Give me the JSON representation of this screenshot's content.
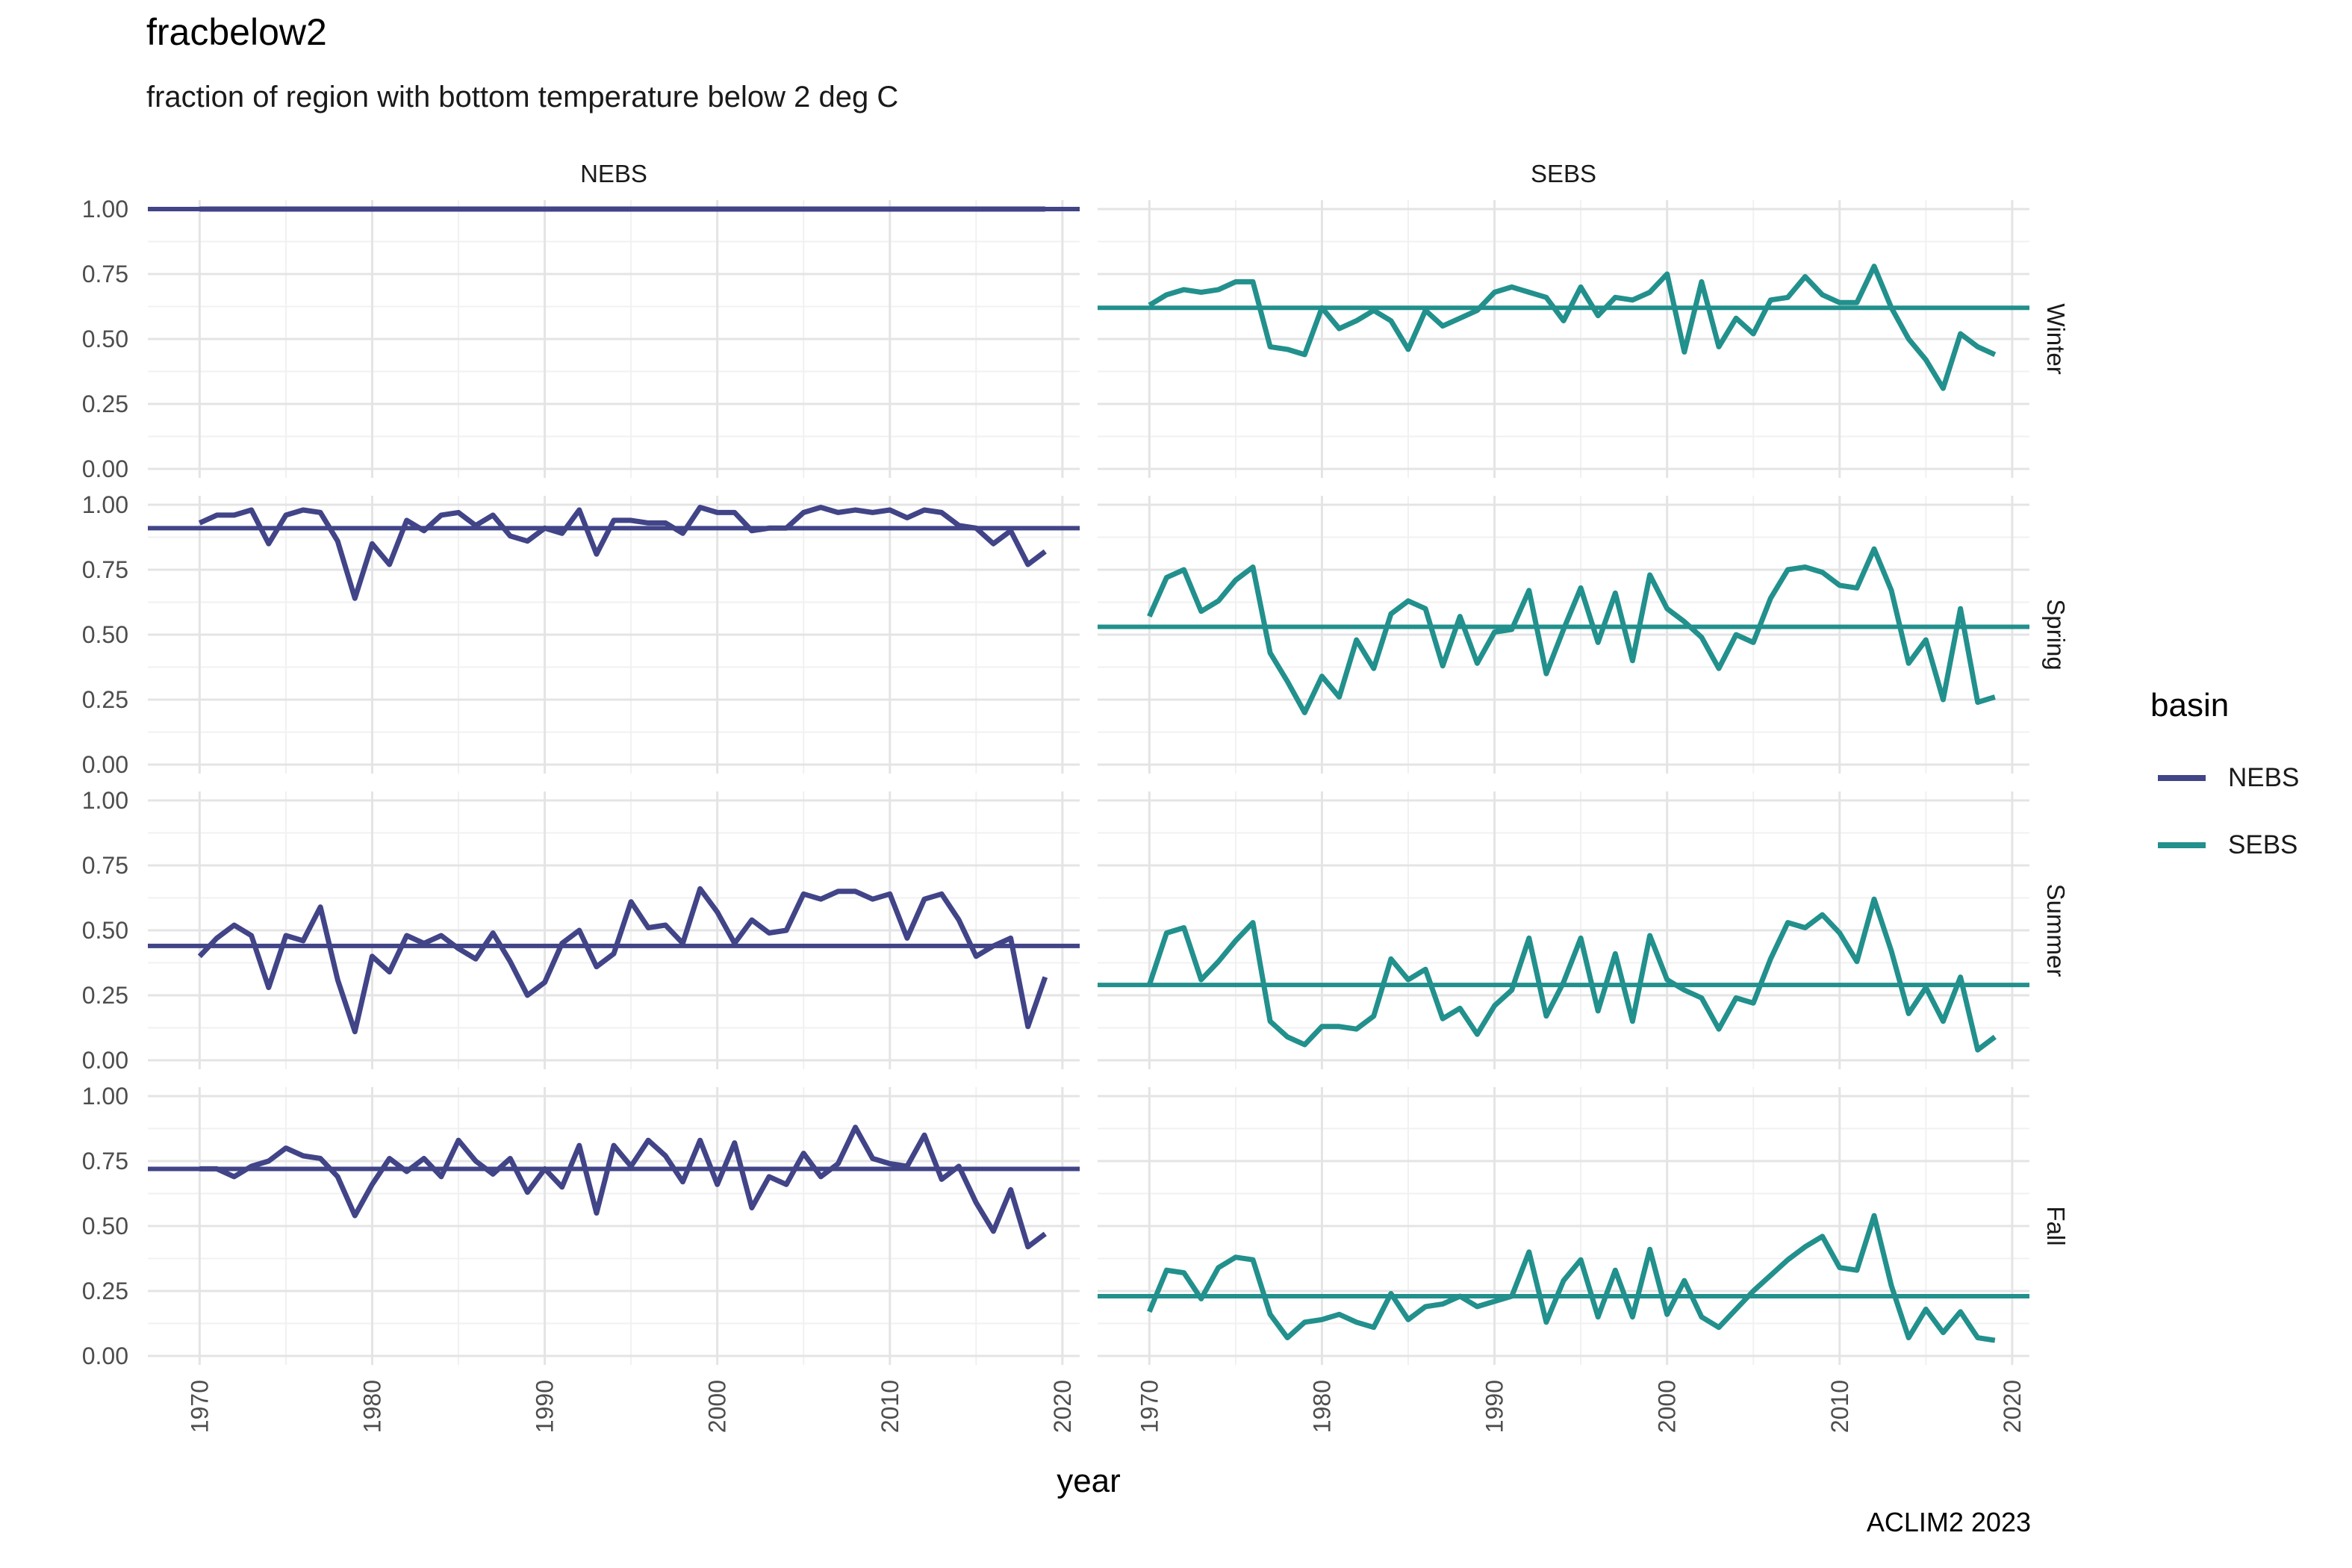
{
  "title": "fracbelow2",
  "subtitle": "fraction of region with bottom temperature below 2 deg C",
  "caption": "ACLIM2 2023",
  "colors": {
    "NEBS": "#414487",
    "SEBS": "#22908C"
  },
  "chart_data": {
    "type": "line",
    "title": "fracbelow2",
    "subtitle": "fraction of region with bottom temperature below 2 deg C",
    "xlabel": "year",
    "ylabel": "",
    "facet_columns": [
      "NEBS",
      "SEBS"
    ],
    "facet_rows": [
      "Winter",
      "Spring",
      "Summer",
      "Fall"
    ],
    "xlim": [
      1967,
      2021
    ],
    "ylim": [
      0,
      1
    ],
    "x_ticks": [
      "1970",
      "1980",
      "1990",
      "2000",
      "2010",
      "2020"
    ],
    "y_ticks": [
      "0.00",
      "0.25",
      "0.50",
      "0.75",
      "1.00"
    ],
    "grid": true,
    "legend": {
      "title": "basin",
      "position": "right",
      "entries": [
        "NEBS",
        "SEBS"
      ]
    },
    "x": [
      1970,
      1971,
      1972,
      1973,
      1974,
      1975,
      1976,
      1977,
      1978,
      1979,
      1980,
      1981,
      1982,
      1983,
      1984,
      1985,
      1986,
      1987,
      1988,
      1989,
      1990,
      1991,
      1992,
      1993,
      1994,
      1995,
      1996,
      1997,
      1998,
      1999,
      2000,
      2001,
      2002,
      2003,
      2004,
      2005,
      2006,
      2007,
      2008,
      2009,
      2010,
      2011,
      2012,
      2013,
      2014,
      2015,
      2016,
      2017,
      2018,
      2019
    ],
    "panels": [
      {
        "basin": "NEBS",
        "season": "Winter",
        "mean": 1.0,
        "values": [
          1,
          1,
          1,
          1,
          1,
          1,
          1,
          1,
          1,
          1,
          1,
          1,
          1,
          1,
          1,
          1,
          1,
          1,
          1,
          1,
          1,
          1,
          1,
          1,
          1,
          1,
          1,
          1,
          1,
          1,
          1,
          1,
          1,
          1,
          1,
          1,
          1,
          1,
          1,
          1,
          1,
          1,
          1,
          1,
          1,
          1,
          1,
          1,
          1,
          1
        ]
      },
      {
        "basin": "SEBS",
        "season": "Winter",
        "mean": 0.62,
        "values": [
          0.63,
          0.67,
          0.69,
          0.68,
          0.69,
          0.72,
          0.72,
          0.47,
          0.46,
          0.44,
          0.62,
          0.54,
          0.57,
          0.61,
          0.57,
          0.46,
          0.61,
          0.55,
          0.58,
          0.61,
          0.68,
          0.7,
          0.68,
          0.66,
          0.57,
          0.7,
          0.59,
          0.66,
          0.65,
          0.68,
          0.75,
          0.45,
          0.72,
          0.47,
          0.58,
          0.52,
          0.65,
          0.66,
          0.74,
          0.67,
          0.64,
          0.64,
          0.78,
          0.62,
          0.5,
          0.42,
          0.31,
          0.52,
          0.47,
          0.44
        ]
      },
      {
        "basin": "NEBS",
        "season": "Spring",
        "mean": 0.91,
        "values": [
          0.93,
          0.96,
          0.96,
          0.98,
          0.85,
          0.96,
          0.98,
          0.97,
          0.86,
          0.64,
          0.85,
          0.77,
          0.94,
          0.9,
          0.96,
          0.97,
          0.92,
          0.96,
          0.88,
          0.86,
          0.91,
          0.89,
          0.98,
          0.81,
          0.94,
          0.94,
          0.93,
          0.93,
          0.89,
          0.99,
          0.97,
          0.97,
          0.9,
          0.91,
          0.91,
          0.97,
          0.99,
          0.97,
          0.98,
          0.97,
          0.98,
          0.95,
          0.98,
          0.97,
          0.92,
          0.91,
          0.85,
          0.9,
          0.77,
          0.82
        ]
      },
      {
        "basin": "SEBS",
        "season": "Spring",
        "mean": 0.53,
        "values": [
          0.57,
          0.72,
          0.75,
          0.59,
          0.63,
          0.71,
          0.76,
          0.43,
          0.32,
          0.2,
          0.34,
          0.26,
          0.48,
          0.37,
          0.58,
          0.63,
          0.6,
          0.38,
          0.57,
          0.39,
          0.51,
          0.52,
          0.67,
          0.35,
          0.52,
          0.68,
          0.47,
          0.66,
          0.4,
          0.73,
          0.6,
          0.55,
          0.49,
          0.37,
          0.5,
          0.47,
          0.64,
          0.75,
          0.76,
          0.74,
          0.69,
          0.68,
          0.83,
          0.67,
          0.39,
          0.48,
          0.25,
          0.6,
          0.24,
          0.26
        ]
      },
      {
        "basin": "NEBS",
        "season": "Summer",
        "mean": 0.44,
        "values": [
          0.4,
          0.47,
          0.52,
          0.48,
          0.28,
          0.48,
          0.46,
          0.59,
          0.31,
          0.11,
          0.4,
          0.34,
          0.48,
          0.45,
          0.48,
          0.43,
          0.39,
          0.49,
          0.38,
          0.25,
          0.3,
          0.45,
          0.5,
          0.36,
          0.41,
          0.61,
          0.51,
          0.52,
          0.45,
          0.66,
          0.57,
          0.45,
          0.54,
          0.49,
          0.5,
          0.64,
          0.62,
          0.65,
          0.65,
          0.62,
          0.64,
          0.47,
          0.62,
          0.64,
          0.54,
          0.4,
          0.44,
          0.47,
          0.13,
          0.32
        ]
      },
      {
        "basin": "SEBS",
        "season": "Summer",
        "mean": 0.29,
        "values": [
          0.29,
          0.49,
          0.51,
          0.31,
          0.38,
          0.46,
          0.53,
          0.15,
          0.09,
          0.06,
          0.13,
          0.13,
          0.12,
          0.17,
          0.39,
          0.31,
          0.35,
          0.16,
          0.2,
          0.1,
          0.21,
          0.27,
          0.47,
          0.17,
          0.3,
          0.47,
          0.19,
          0.41,
          0.15,
          0.48,
          0.31,
          0.27,
          0.24,
          0.12,
          0.24,
          0.22,
          0.39,
          0.53,
          0.51,
          0.56,
          0.49,
          0.38,
          0.62,
          0.42,
          0.18,
          0.28,
          0.15,
          0.32,
          0.04,
          0.09
        ]
      },
      {
        "basin": "NEBS",
        "season": "Fall",
        "mean": 0.72,
        "values": [
          0.72,
          0.72,
          0.69,
          0.73,
          0.75,
          0.8,
          0.77,
          0.76,
          0.69,
          0.54,
          0.66,
          0.76,
          0.71,
          0.76,
          0.69,
          0.83,
          0.75,
          0.7,
          0.76,
          0.63,
          0.72,
          0.65,
          0.81,
          0.55,
          0.81,
          0.73,
          0.83,
          0.77,
          0.67,
          0.83,
          0.66,
          0.82,
          0.57,
          0.69,
          0.66,
          0.78,
          0.69,
          0.74,
          0.88,
          0.76,
          0.74,
          0.73,
          0.85,
          0.68,
          0.73,
          0.59,
          0.48,
          0.64,
          0.42,
          0.47
        ]
      },
      {
        "basin": "SEBS",
        "season": "Fall",
        "mean": 0.23,
        "values": [
          0.17,
          0.33,
          0.32,
          0.22,
          0.34,
          0.38,
          0.37,
          0.16,
          0.07,
          0.13,
          0.14,
          0.16,
          0.13,
          0.11,
          0.24,
          0.14,
          0.19,
          0.2,
          0.23,
          0.19,
          0.21,
          0.23,
          0.4,
          0.13,
          0.29,
          0.37,
          0.15,
          0.33,
          0.15,
          0.41,
          0.16,
          0.29,
          0.15,
          0.11,
          0.18,
          0.25,
          0.31,
          0.37,
          0.42,
          0.46,
          0.34,
          0.33,
          0.54,
          0.27,
          0.07,
          0.18,
          0.09,
          0.17,
          0.07,
          0.06
        ]
      }
    ]
  }
}
